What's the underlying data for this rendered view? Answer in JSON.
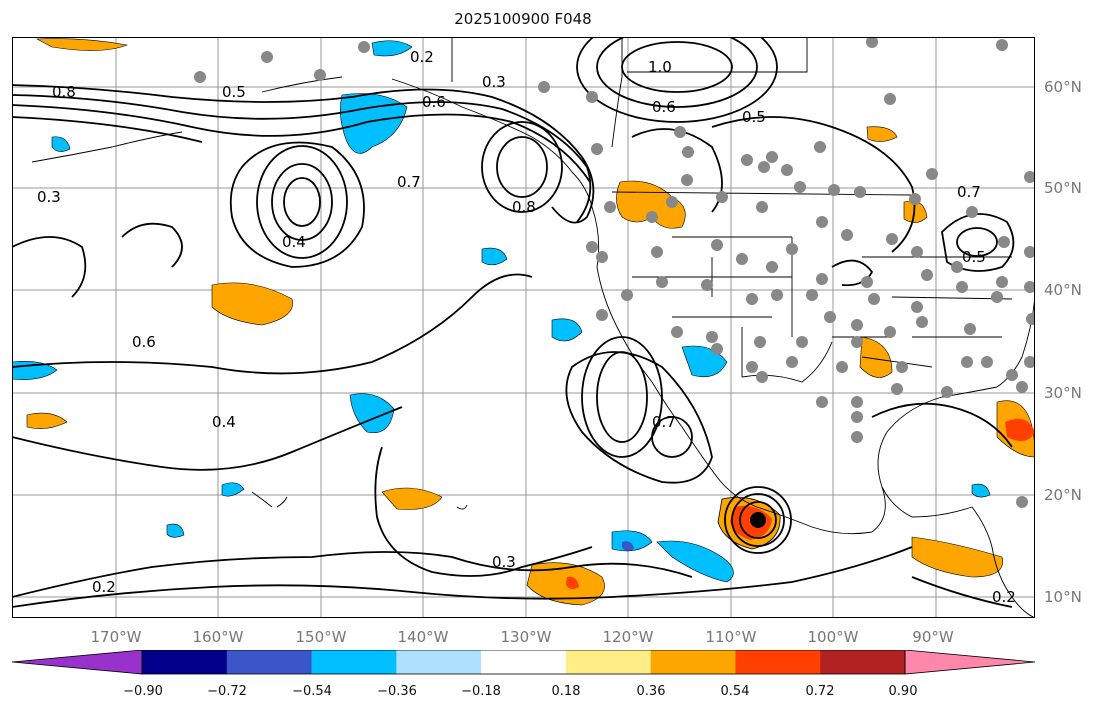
{
  "title": "2025100900 F048",
  "lat_ticks": [
    "60°N",
    "50°N",
    "40°N",
    "30°N",
    "20°N",
    "10°N"
  ],
  "lon_ticks": [
    "170°W",
    "160°W",
    "150°W",
    "140°W",
    "130°W",
    "120°W",
    "110°W",
    "100°W",
    "90°W"
  ],
  "colorbar": {
    "ticks": [
      "−0.90",
      "−0.72",
      "−0.54",
      "−0.36",
      "−0.18",
      "0.18",
      "0.36",
      "0.54",
      "0.72",
      "0.90"
    ],
    "colors": [
      "#9932cc",
      "#00008b",
      "#3a56c9",
      "#00bfff",
      "#b0e0ff",
      "#ffffff",
      "#ffee88",
      "#ffa500",
      "#ff4000",
      "#b22222",
      "#ff88aa"
    ]
  },
  "map": {
    "extent": {
      "lon": [
        -180,
        -80
      ],
      "lat": [
        8,
        65
      ]
    },
    "contour_labels": [
      "0.2",
      "0.3",
      "0.4",
      "0.5",
      "0.6",
      "0.7",
      "0.8",
      "1.0"
    ],
    "station_color": "#888888"
  }
}
